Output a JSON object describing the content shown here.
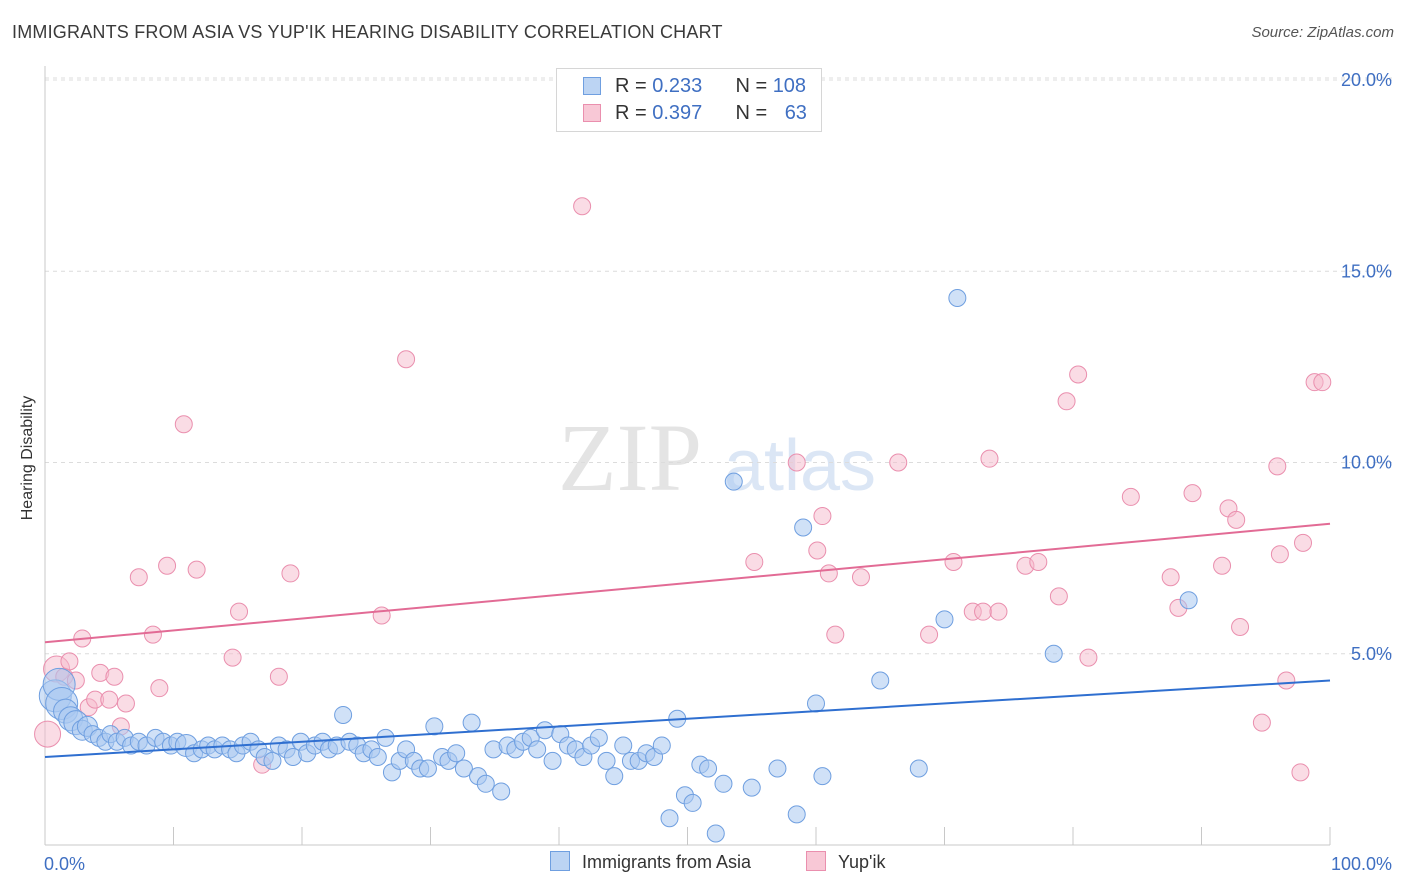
{
  "title": "IMMIGRANTS FROM ASIA VS YUP'IK HEARING DISABILITY CORRELATION CHART",
  "source": "Source: ZipAtlas.com",
  "watermark": {
    "zip": "ZIP",
    "atlas": "atlas"
  },
  "legend": {
    "rows": [
      {
        "r_label": "R = ",
        "r_value": "0.233",
        "n_label": "N = ",
        "n_value": "108"
      },
      {
        "r_label": "R = ",
        "r_value": "0.397",
        "n_label": "N = ",
        "n_value": "63"
      }
    ]
  },
  "colors": {
    "blue_fill": "#aac8f0",
    "blue_stroke": "#6f9fe0",
    "blue_line": "#2f6fd0",
    "pink_fill": "#f6b9cb",
    "pink_stroke": "#ea8fae",
    "pink_line": "#e26b95",
    "tick_label": "#3f6fc2",
    "grid": "#dcdcdc"
  },
  "chart_data": {
    "type": "scatter",
    "title": "IMMIGRANTS FROM ASIA VS YUP'IK HEARING DISABILITY CORRELATION CHART",
    "xlabel": "",
    "ylabel": "Hearing Disability",
    "xlim": [
      0,
      100
    ],
    "ylim": [
      0,
      20.5
    ],
    "x_tick_labels": [
      "0.0%",
      "100.0%"
    ],
    "y_ticks": [
      5,
      10,
      15,
      20
    ],
    "y_tick_labels": [
      "5.0%",
      "10.0%",
      "15.0%",
      "20.0%"
    ],
    "grid": "horizontal dashed",
    "legend_position": "top-center",
    "series": [
      {
        "name": "Immigrants from Asia",
        "r": 0.233,
        "n": 108,
        "trend": {
          "x": [
            0,
            100
          ],
          "y": [
            2.3,
            4.3
          ]
        },
        "points": [
          [
            0.8,
            3.9
          ],
          [
            1.1,
            4.2
          ],
          [
            1.3,
            3.7
          ],
          [
            1.6,
            3.5
          ],
          [
            2.0,
            3.3
          ],
          [
            2.4,
            3.2
          ],
          [
            2.9,
            3.0
          ],
          [
            3.3,
            3.1
          ],
          [
            3.7,
            2.9
          ],
          [
            4.2,
            2.8
          ],
          [
            4.7,
            2.7
          ],
          [
            5.1,
            2.9
          ],
          [
            5.6,
            2.7
          ],
          [
            6.2,
            2.8
          ],
          [
            6.7,
            2.6
          ],
          [
            7.3,
            2.7
          ],
          [
            7.9,
            2.6
          ],
          [
            8.6,
            2.8
          ],
          [
            9.2,
            2.7
          ],
          [
            9.8,
            2.6
          ],
          [
            10.3,
            2.7
          ],
          [
            11.0,
            2.6
          ],
          [
            11.6,
            2.4
          ],
          [
            12.2,
            2.5
          ],
          [
            12.7,
            2.6
          ],
          [
            13.2,
            2.5
          ],
          [
            13.8,
            2.6
          ],
          [
            14.4,
            2.5
          ],
          [
            14.9,
            2.4
          ],
          [
            15.4,
            2.6
          ],
          [
            16.0,
            2.7
          ],
          [
            16.6,
            2.5
          ],
          [
            17.1,
            2.3
          ],
          [
            17.7,
            2.2
          ],
          [
            18.2,
            2.6
          ],
          [
            18.8,
            2.5
          ],
          [
            19.3,
            2.3
          ],
          [
            19.9,
            2.7
          ],
          [
            20.4,
            2.4
          ],
          [
            21.0,
            2.6
          ],
          [
            21.6,
            2.7
          ],
          [
            22.1,
            2.5
          ],
          [
            22.7,
            2.6
          ],
          [
            23.2,
            3.4
          ],
          [
            23.7,
            2.7
          ],
          [
            24.3,
            2.6
          ],
          [
            24.8,
            2.4
          ],
          [
            25.4,
            2.5
          ],
          [
            25.9,
            2.3
          ],
          [
            26.5,
            2.8
          ],
          [
            27.0,
            1.9
          ],
          [
            27.6,
            2.2
          ],
          [
            28.1,
            2.5
          ],
          [
            28.7,
            2.2
          ],
          [
            29.2,
            2.0
          ],
          [
            29.8,
            2.0
          ],
          [
            30.3,
            3.1
          ],
          [
            30.9,
            2.3
          ],
          [
            31.4,
            2.2
          ],
          [
            32.0,
            2.4
          ],
          [
            32.6,
            2.0
          ],
          [
            33.2,
            3.2
          ],
          [
            33.7,
            1.8
          ],
          [
            34.3,
            1.6
          ],
          [
            34.9,
            2.5
          ],
          [
            35.5,
            1.4
          ],
          [
            36.0,
            2.6
          ],
          [
            36.6,
            2.5
          ],
          [
            37.2,
            2.7
          ],
          [
            37.8,
            2.8
          ],
          [
            38.3,
            2.5
          ],
          [
            38.9,
            3.0
          ],
          [
            39.5,
            2.2
          ],
          [
            40.1,
            2.9
          ],
          [
            40.7,
            2.6
          ],
          [
            41.3,
            2.5
          ],
          [
            41.9,
            2.3
          ],
          [
            42.5,
            2.6
          ],
          [
            43.1,
            2.8
          ],
          [
            43.7,
            2.2
          ],
          [
            44.3,
            1.8
          ],
          [
            45.0,
            2.6
          ],
          [
            45.6,
            2.2
          ],
          [
            46.2,
            2.2
          ],
          [
            46.8,
            2.4
          ],
          [
            47.4,
            2.3
          ],
          [
            48.0,
            2.6
          ],
          [
            48.6,
            0.7
          ],
          [
            49.2,
            3.3
          ],
          [
            49.8,
            1.3
          ],
          [
            50.4,
            1.1
          ],
          [
            51.0,
            2.1
          ],
          [
            51.6,
            2.0
          ],
          [
            52.2,
            0.3
          ],
          [
            52.8,
            1.6
          ],
          [
            53.6,
            9.5
          ],
          [
            55.0,
            1.5
          ],
          [
            57.0,
            2.0
          ],
          [
            58.5,
            0.8
          ],
          [
            59.0,
            8.3
          ],
          [
            60.0,
            3.7
          ],
          [
            60.5,
            1.8
          ],
          [
            65.0,
            4.3
          ],
          [
            68.0,
            2.0
          ],
          [
            70.0,
            5.9
          ],
          [
            71.0,
            14.3
          ],
          [
            78.5,
            5.0
          ],
          [
            89.0,
            6.4
          ]
        ]
      },
      {
        "name": "Yup'ik",
        "r": 0.397,
        "n": 63,
        "trend": {
          "x": [
            0,
            100
          ],
          "y": [
            5.3,
            8.4
          ]
        },
        "points": [
          [
            0.2,
            2.9
          ],
          [
            0.9,
            4.6
          ],
          [
            1.5,
            4.4
          ],
          [
            1.9,
            4.8
          ],
          [
            2.4,
            4.3
          ],
          [
            2.9,
            5.4
          ],
          [
            3.4,
            3.6
          ],
          [
            3.9,
            3.8
          ],
          [
            4.3,
            4.5
          ],
          [
            5.0,
            3.8
          ],
          [
            5.4,
            4.4
          ],
          [
            5.9,
            3.1
          ],
          [
            6.3,
            3.7
          ],
          [
            7.3,
            7.0
          ],
          [
            8.4,
            5.5
          ],
          [
            8.9,
            4.1
          ],
          [
            9.5,
            7.3
          ],
          [
            10.8,
            11.0
          ],
          [
            11.8,
            7.2
          ],
          [
            14.6,
            4.9
          ],
          [
            15.1,
            6.1
          ],
          [
            16.9,
            2.1
          ],
          [
            18.2,
            4.4
          ],
          [
            19.1,
            7.1
          ],
          [
            26.2,
            6.0
          ],
          [
            28.1,
            12.7
          ],
          [
            41.8,
            16.7
          ],
          [
            55.2,
            7.4
          ],
          [
            58.5,
            10.0
          ],
          [
            60.1,
            7.7
          ],
          [
            60.5,
            8.6
          ],
          [
            61.0,
            7.1
          ],
          [
            61.5,
            5.5
          ],
          [
            63.5,
            7.0
          ],
          [
            66.4,
            10.0
          ],
          [
            68.8,
            5.5
          ],
          [
            70.7,
            7.4
          ],
          [
            72.2,
            6.1
          ],
          [
            73.0,
            6.1
          ],
          [
            73.5,
            10.1
          ],
          [
            74.2,
            6.1
          ],
          [
            76.3,
            7.3
          ],
          [
            77.3,
            7.4
          ],
          [
            78.9,
            6.5
          ],
          [
            79.5,
            11.6
          ],
          [
            80.4,
            12.3
          ],
          [
            81.2,
            4.9
          ],
          [
            84.5,
            9.1
          ],
          [
            87.6,
            7.0
          ],
          [
            88.2,
            6.2
          ],
          [
            89.3,
            9.2
          ],
          [
            91.6,
            7.3
          ],
          [
            92.1,
            8.8
          ],
          [
            92.7,
            8.5
          ],
          [
            93.0,
            5.7
          ],
          [
            94.7,
            3.2
          ],
          [
            95.9,
            9.9
          ],
          [
            96.1,
            7.6
          ],
          [
            96.6,
            4.3
          ],
          [
            97.9,
            7.9
          ],
          [
            98.8,
            12.1
          ],
          [
            99.4,
            12.1
          ],
          [
            97.7,
            1.9
          ]
        ]
      }
    ]
  },
  "bottom_legend": [
    "Immigrants from Asia",
    "Yup'ik"
  ]
}
